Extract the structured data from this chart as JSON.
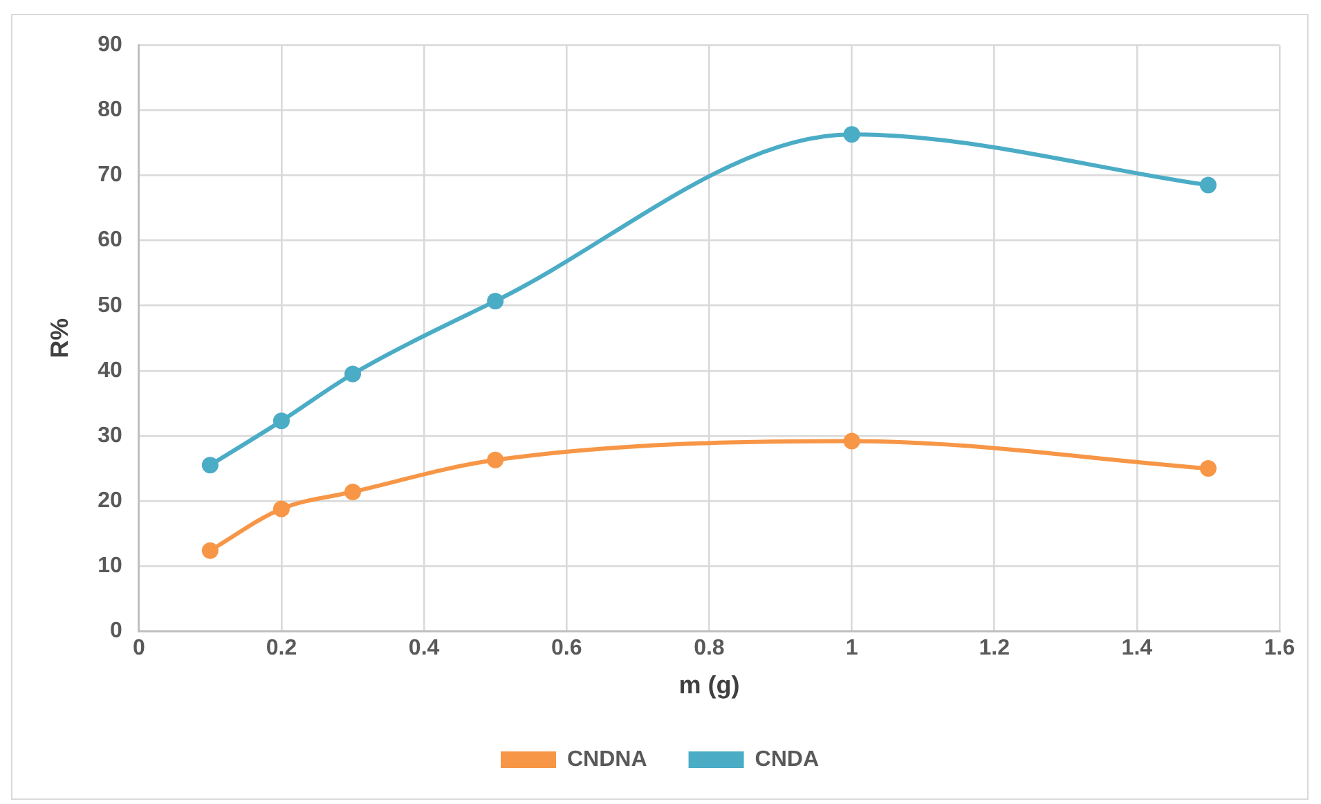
{
  "chart_data": {
    "type": "line",
    "xlabel": "m (g)",
    "ylabel": "R%",
    "xlim": [
      0,
      1.6
    ],
    "xticks": [
      0,
      0.2,
      0.4,
      0.6,
      0.8,
      1,
      1.2,
      1.4,
      1.6
    ],
    "ylim": [
      0,
      90
    ],
    "yticks": [
      0,
      10,
      20,
      30,
      40,
      50,
      60,
      70,
      80,
      90
    ],
    "x": [
      0.1,
      0.2,
      0.3,
      0.5,
      1,
      1.5
    ],
    "series": [
      {
        "name": "CNDNA",
        "color": "#f79646",
        "values": [
          12.4,
          18.8,
          21.4,
          26.3,
          29.2,
          25.0
        ]
      },
      {
        "name": "CNDA",
        "color": "#4bacc6",
        "values": [
          25.5,
          32.3,
          39.5,
          50.7,
          76.3,
          68.5
        ]
      }
    ],
    "grid": true,
    "legend": "bottom",
    "marker": "circle",
    "line_style": "solid"
  }
}
